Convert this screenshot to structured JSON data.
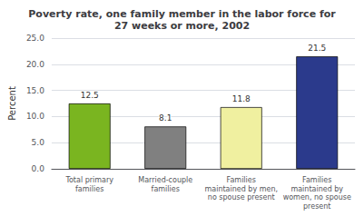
{
  "chart_data": {
    "type": "bar",
    "title": "Poverty rate, one family member in the labor force for\n27 weeks or more, 2002",
    "categories": [
      "Total primary\nfamilies",
      "Married-couple\nfamilies",
      "Families\nmaintained by men,\nno spouse present",
      "Families\nmaintained by\nwomen, no spouse\npresent"
    ],
    "values": [
      12.5,
      8.1,
      11.8,
      21.5
    ],
    "colors": [
      "#7ab520",
      "#808080",
      "#f0f0a0",
      "#2b3a8c"
    ],
    "ylabel": "Percent",
    "ylim": [
      0,
      25
    ],
    "yticks": [
      {
        "value": 0,
        "label": "0.0"
      },
      {
        "value": 5,
        "label": "5.0"
      },
      {
        "value": 10,
        "label": "10.0"
      },
      {
        "value": 15,
        "label": "15.0"
      },
      {
        "value": 20,
        "label": "20.0"
      },
      {
        "value": 25,
        "label": "25.0"
      }
    ],
    "data_labels": true,
    "value_labels": [
      "12.5",
      "8.1",
      "11.8",
      "21.5"
    ],
    "grid": true
  }
}
